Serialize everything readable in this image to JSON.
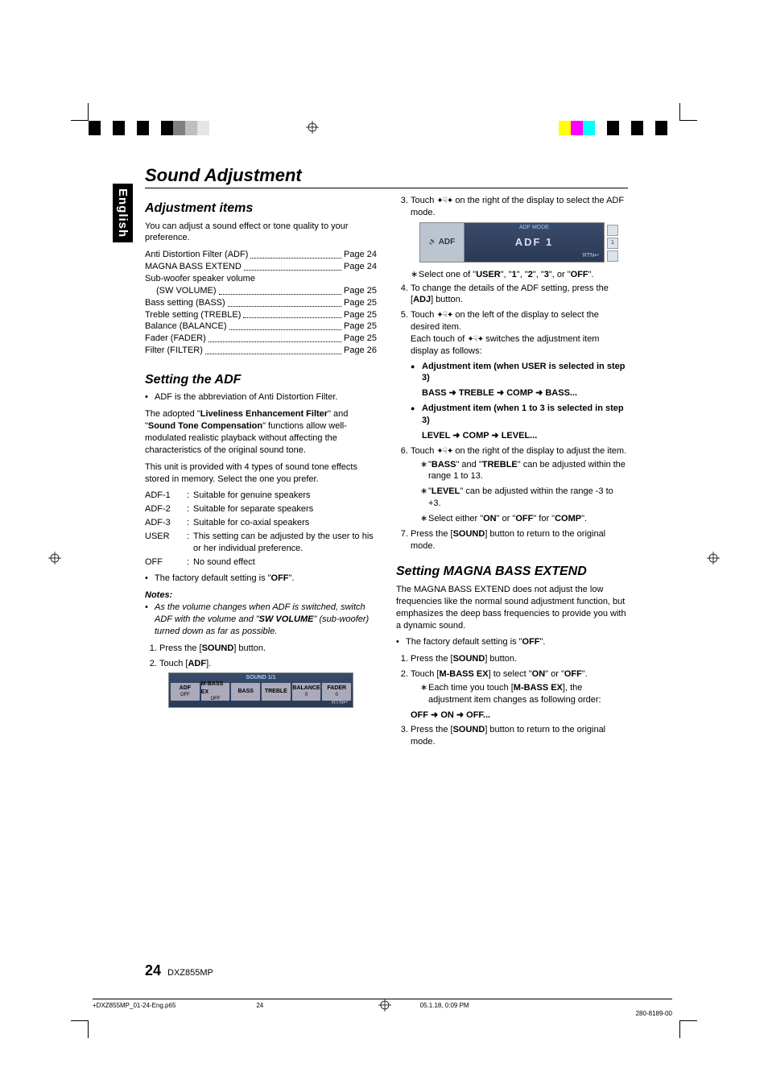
{
  "colorbar_left": [
    "#000000",
    "#ffffff",
    "#000000",
    "#ffffff",
    "#000000",
    "#ffffff",
    "#000000",
    "#808080",
    "#bfbfbf",
    "#e5e5e5"
  ],
  "colorbar_right": [
    "#ffff00",
    "#ff00ff",
    "#00ffff",
    "#ffffff",
    "#000000",
    "#ffffff",
    "#000000",
    "#ffffff",
    "#000000",
    "#ffffff"
  ],
  "language_tab": "English",
  "main_title": "Sound Adjustment",
  "page_number": "24",
  "model": "DXZ855MP",
  "footer": {
    "filename": "+DXZ855MP_01-24-Eng.p65",
    "pagenum": "24",
    "timestamp": "05.1.18, 0:09 PM",
    "partnum": "280-8189-00"
  },
  "left_column": {
    "adj_items_title": "Adjustment items",
    "adj_items_intro": "You can adjust a sound effect or tone quality to your preference.",
    "toc": [
      {
        "label": "Anti Distortion Filter (ADF)",
        "page": "Page 24",
        "indent": false
      },
      {
        "label": "MAGNA BASS EXTEND",
        "page": "Page 24",
        "indent": false
      },
      {
        "label": "Sub-woofer speaker volume",
        "page": "",
        "indent": false
      },
      {
        "label": "(SW VOLUME)",
        "page": "Page 25",
        "indent": true
      },
      {
        "label": "Bass setting (BASS)",
        "page": "Page 25",
        "indent": false
      },
      {
        "label": "Treble setting (TREBLE)",
        "page": "Page 25",
        "indent": false
      },
      {
        "label": "Balance (BALANCE)",
        "page": "Page 25",
        "indent": false
      },
      {
        "label": "Fader (FADER)",
        "page": "Page 25",
        "indent": false
      },
      {
        "label": "Filter (FILTER)",
        "page": "Page 26",
        "indent": false
      }
    ],
    "setting_adf_title": "Setting the ADF",
    "adf_bullet1": "ADF is the abbreviation of Anti Distortion Filter.",
    "adf_para1_a": "The adopted \"",
    "adf_para1_b": "Liveliness Enhancement Filter",
    "adf_para1_c": "\" and \"",
    "adf_para1_d": "Sound Tone Compensation",
    "adf_para1_e": "\" functions allow well-modulated realistic playback without affecting the characteristics of the original sound tone.",
    "adf_para2": "This unit is provided with 4 types of sound tone effects stored in memory. Select the one you prefer.",
    "adf_rows": [
      {
        "lbl": "ADF-1",
        "desc": "Suitable for genuine speakers"
      },
      {
        "lbl": "ADF-2",
        "desc": "Suitable for separate speakers"
      },
      {
        "lbl": "ADF-3",
        "desc": "Suitable for co-axial speakers"
      },
      {
        "lbl": "USER",
        "desc": "This setting can be adjusted by the user to his or her individual preference."
      },
      {
        "lbl": "OFF",
        "desc": "No sound effect"
      }
    ],
    "adf_default_a": "The factory default setting is \"",
    "adf_default_b": "OFF",
    "adf_default_c": "\".",
    "notes_heading": "Notes:",
    "notes_body_a": "As the volume changes when ADF is switched, switch ADF with the volume and \"",
    "notes_body_b": "SW VOLUME",
    "notes_body_c": "\" (sub-woofer) turned down as far as possible.",
    "step1_a": "Press the [",
    "step1_b": "SOUND",
    "step1_c": "] button.",
    "step2_a": "Touch [",
    "step2_b": "ADF",
    "step2_c": "].",
    "sound_screen": {
      "title": "SOUND 1/1",
      "buttons": [
        {
          "main": "ADF",
          "sub": "OFF"
        },
        {
          "main": "M-BASS EX",
          "sub": "OFF"
        },
        {
          "main": "BASS",
          "sub": ""
        },
        {
          "main": "TREBLE",
          "sub": ""
        },
        {
          "main": "BALANCE",
          "sub": "0"
        },
        {
          "main": "FADER",
          "sub": "0"
        }
      ],
      "rtn": "RTN↩"
    }
  },
  "right_column": {
    "step3_a": "Touch ",
    "step3_b": " on the right of the display to select the ADF mode.",
    "adf_screen": {
      "left_label": "ADF",
      "mode_title": "ADF MODE",
      "big_label": "ADF  1",
      "rtn": "RTN↩",
      "side_box": "1"
    },
    "step3_sub_a": "Select one of \"",
    "step3_sub_user": "USER",
    "step3_sub_b": "\", \"",
    "step3_sub_1": "1",
    "step3_sub_c": "\", \"",
    "step3_sub_2": "2",
    "step3_sub_d": "\", \"",
    "step3_sub_3": "3",
    "step3_sub_e": "\", or \"",
    "step3_sub_off": "OFF",
    "step3_sub_f": "\".",
    "step4_a": "To change the details of the ADF setting, press the [",
    "step4_b": "ADJ",
    "step4_c": "] button.",
    "step5_a": "Touch ",
    "step5_b": " on the left of the display to select the desired item.",
    "step5_c": "Each touch of ",
    "step5_d": " switches the adjustment item display as follows:",
    "fb1_title": "Adjustment item (when USER is selected in step 3)",
    "fb1_seq": "BASS ➜ TREBLE ➜ COMP ➜ BASS...",
    "fb2_title": "Adjustment item (when 1 to 3 is selected in step 3)",
    "fb2_seq": "LEVEL ➜ COMP ➜ LEVEL...",
    "step6_a": "Touch ",
    "step6_b": " on the right of the display to adjust the item.",
    "step6_sub1_a": "\"",
    "step6_sub1_bass": "BASS",
    "step6_sub1_b": "\" and \"",
    "step6_sub1_treble": "TREBLE",
    "step6_sub1_c": "\" can be adjusted within the range 1 to 13.",
    "step6_sub2_a": "\"",
    "step6_sub2_level": "LEVEL",
    "step6_sub2_b": "\" can be adjusted within the range -3 to +3.",
    "step6_sub3_a": "Select either \"",
    "step6_sub3_on": "ON",
    "step6_sub3_b": "\" or \"",
    "step6_sub3_off": "OFF",
    "step6_sub3_c": "\" for \"",
    "step6_sub3_comp": "COMP",
    "step6_sub3_d": "\".",
    "step7_a": "Press the [",
    "step7_b": "SOUND",
    "step7_c": "] button to return to the original mode.",
    "magna_title": "Setting MAGNA BASS EXTEND",
    "magna_para": "The MAGNA BASS EXTEND does not adjust the low frequencies like the normal sound adjustment function, but emphasizes the deep bass frequencies to provide you with a dynamic sound.",
    "magna_default_a": "The factory default setting is \"",
    "magna_default_b": "OFF",
    "magna_default_c": "\".",
    "magna_step1_a": "Press the [",
    "magna_step1_b": "SOUND",
    "magna_step1_c": "] button.",
    "magna_step2_a": "Touch [",
    "magna_step2_b": "M-BASS EX",
    "magna_step2_c": "] to select \"",
    "magna_step2_on": "ON",
    "magna_step2_d": "\" or \"",
    "magna_step2_off": "OFF",
    "magna_step2_e": "\".",
    "magna_step2_sub_a": "Each time you touch [",
    "magna_step2_sub_b": "M-BASS EX",
    "magna_step2_sub_c": "], the adjustment item changes as following order:",
    "magna_seq": "OFF ➜ ON ➜ OFF...",
    "magna_step3_a": "Press the [",
    "magna_step3_b": "SOUND",
    "magna_step3_c": "] button to return to the original mode."
  }
}
